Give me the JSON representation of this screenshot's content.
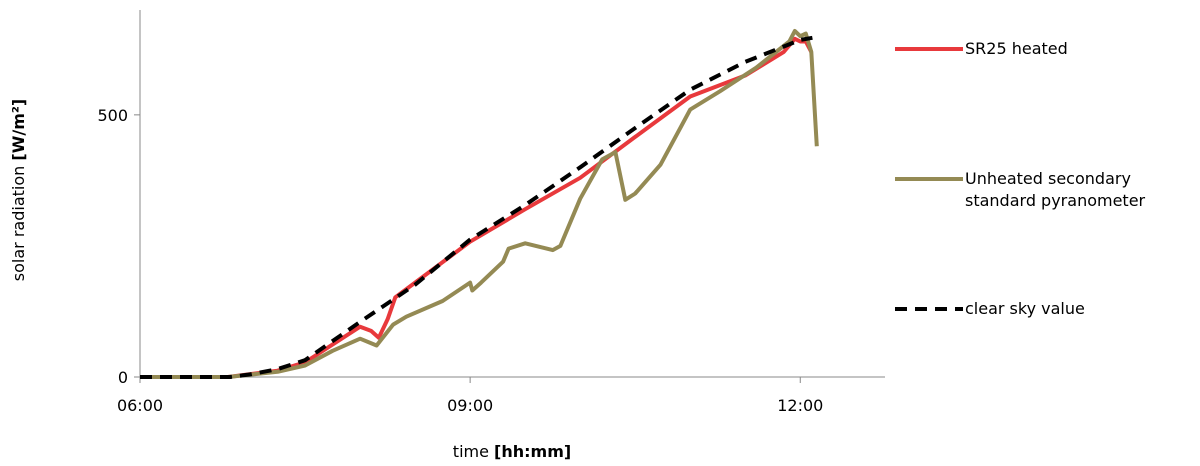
{
  "chart_data": {
    "type": "line",
    "x_label": "time",
    "x_label_unit": "[hh:mm]",
    "y_label": "solar radiation",
    "y_label_unit": "[W/m²]",
    "xlim": [
      6,
      12.77
    ],
    "ylim": [
      0,
      700
    ],
    "xticks": [
      {
        "value": 6,
        "label": "06:00"
      },
      {
        "value": 9,
        "label": "09:00"
      },
      {
        "value": 12,
        "label": "12:00"
      }
    ],
    "yticks": [
      0,
      500
    ],
    "grid": false,
    "legend": "right",
    "series": [
      {
        "name": "SR25 heated",
        "color": "#e8393c",
        "dashed": false,
        "x": [
          6,
          6.8,
          7.25,
          7.5,
          8.0,
          8.1,
          8.17,
          8.25,
          8.32,
          8.5,
          9.0,
          9.5,
          10.0,
          10.5,
          11.0,
          11.5,
          11.85,
          11.95,
          12.0,
          12.05,
          12.1
        ],
        "values": [
          0,
          0,
          12,
          28,
          96,
          88,
          75,
          110,
          152,
          180,
          258,
          320,
          380,
          458,
          535,
          575,
          620,
          645,
          640,
          640,
          620
        ]
      },
      {
        "name": "Unheated secondary standard pyranometer",
        "color": "#948a54",
        "dashed": false,
        "x": [
          6,
          6.8,
          7.25,
          7.5,
          7.75,
          8.0,
          8.15,
          8.3,
          8.42,
          8.75,
          9.0,
          9.02,
          9.1,
          9.3,
          9.35,
          9.5,
          9.75,
          9.82,
          10.0,
          10.2,
          10.32,
          10.41,
          10.5,
          10.73,
          11.0,
          11.27,
          11.6,
          11.9,
          11.95,
          12.0,
          12.05,
          12.1,
          12.15
        ],
        "values": [
          0,
          0,
          10,
          22,
          50,
          73,
          60,
          100,
          115,
          145,
          180,
          165,
          180,
          220,
          245,
          255,
          242,
          250,
          340,
          415,
          429,
          338,
          350,
          405,
          510,
          545,
          590,
          640,
          660,
          650,
          655,
          620,
          440
        ]
      },
      {
        "name": "clear sky value",
        "color": "#000000",
        "dashed": true,
        "x": [
          6,
          6.5,
          6.82,
          7.0,
          7.25,
          7.5,
          8.0,
          8.5,
          9.0,
          9.5,
          10.0,
          10.5,
          11.0,
          11.5,
          12.0,
          12.11
        ],
        "values": [
          0,
          0,
          0,
          5,
          15,
          32,
          105,
          176,
          262,
          328,
          400,
          475,
          548,
          601,
          643,
          647
        ]
      }
    ]
  }
}
